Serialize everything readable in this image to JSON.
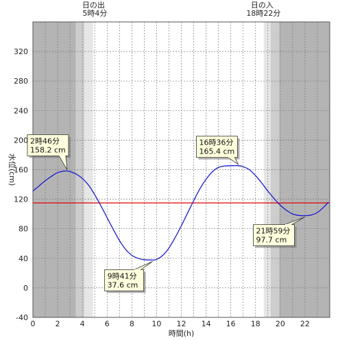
{
  "chart_data": {
    "type": "line",
    "xlabel": "時間(h)",
    "ylabel": "水位(cm)",
    "xlim": [
      0,
      24
    ],
    "ylim": [
      -40,
      360
    ],
    "x_ticks": [
      0,
      2,
      4,
      6,
      8,
      10,
      12,
      14,
      16,
      18,
      20,
      22
    ],
    "y_ticks": [
      -40,
      0,
      40,
      80,
      120,
      160,
      200,
      240,
      280,
      320
    ],
    "sunrise": {
      "label": "日の出",
      "time": "5時4分",
      "hour": 5.067
    },
    "sunset": {
      "label": "日の入",
      "time": "18時22分",
      "hour": 18.367
    },
    "reference_level": 115,
    "series": [
      {
        "color": "#1a1acc",
        "x": [
          0,
          0.5,
          1,
          1.5,
          2,
          2.5,
          2.77,
          3,
          3.5,
          4,
          4.5,
          5,
          5.5,
          6,
          6.5,
          7,
          7.5,
          8,
          8.5,
          9,
          9.5,
          9.68,
          10,
          10.5,
          11,
          11.5,
          12,
          12.5,
          13,
          13.5,
          14,
          14.5,
          15,
          15.5,
          16,
          16.6,
          17,
          17.5,
          18,
          18.5,
          19,
          19.5,
          20,
          20.5,
          21,
          21.5,
          21.98,
          22.5,
          23,
          23.5,
          23.9
        ],
        "y": [
          131,
          138,
          145,
          151,
          156,
          158,
          158.2,
          157.5,
          154,
          148,
          139,
          126,
          111,
          95,
          79,
          64,
          52,
          44,
          40,
          38,
          37.8,
          37.6,
          38.5,
          44,
          54,
          68,
          84,
          101,
          118,
          134,
          147,
          157,
          163,
          165,
          165.3,
          165.4,
          164,
          160,
          152,
          142,
          131,
          121,
          112,
          105,
          100,
          98,
          97.7,
          98.5,
          102,
          109,
          116
        ]
      }
    ],
    "annotations": [
      {
        "time": "2時46分",
        "value": "158.2 cm",
        "x": 2.77,
        "y": 158.2
      },
      {
        "time": "9時41分",
        "value": "37.6 cm",
        "x": 9.68,
        "y": 37.6
      },
      {
        "time": "16時36分",
        "value": "165.4 cm",
        "x": 16.6,
        "y": 165.4
      },
      {
        "time": "21時59分",
        "value": "97.7 cm",
        "x": 21.98,
        "y": 97.7
      }
    ],
    "colors": {
      "night": "#b4b4b4",
      "twilight_dark": "#cdcdcd",
      "twilight_light": "#e6e6e6",
      "day": "#ffffff",
      "curve": "#1a1acc",
      "reference": "#dd0000",
      "callout_fill": "#ffffdd"
    }
  }
}
